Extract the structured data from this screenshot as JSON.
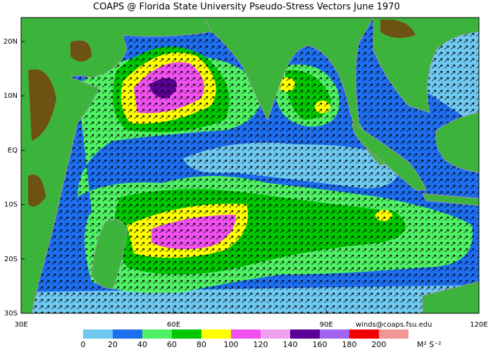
{
  "header": {
    "title": "COAPS @ Florida State University Pseudo-Stress Vectors  June 1970"
  },
  "map": {
    "lon_range": [
      30,
      120
    ],
    "lat_range": [
      -30,
      24.4
    ],
    "lon_ticks": [
      {
        "value": 30,
        "label": "30E"
      },
      {
        "value": 60,
        "label": "60E"
      },
      {
        "value": 90,
        "label": "90E"
      },
      {
        "value": 120,
        "label": "120E"
      }
    ],
    "lat_ticks": [
      {
        "value": 20,
        "label": "20N"
      },
      {
        "value": 10,
        "label": "10N"
      },
      {
        "value": 0,
        "label": "EQ"
      },
      {
        "value": -10,
        "label": "10S"
      },
      {
        "value": -20,
        "label": "20S"
      },
      {
        "value": -30,
        "label": "30S"
      }
    ]
  },
  "credit": "winds@coaps.fsu.edu",
  "colorbar": {
    "ticks": [
      0,
      20,
      40,
      60,
      80,
      100,
      120,
      140,
      160,
      180,
      200
    ],
    "colors": [
      "#6ec8f0",
      "#1e6ef0",
      "#50f064",
      "#00c800",
      "#ffff00",
      "#f050f0",
      "#f0a0f0",
      "#5a0096",
      "#a064f0",
      "#f00000",
      "#f09696"
    ],
    "unit": "M² S⁻²"
  }
}
